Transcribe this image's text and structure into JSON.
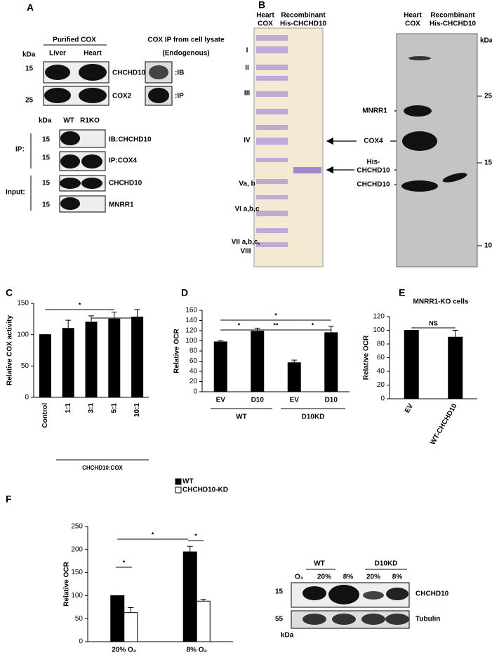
{
  "panel_labels": [
    "A",
    "B",
    "C",
    "D",
    "E",
    "F"
  ],
  "panel_a": {
    "purified_header": "Purified COX",
    "ip_header": "COX IP from cell lysate",
    "ip_sub": "(Endogenous)",
    "kda": "kDa",
    "lanes": [
      "Liver",
      "Heart"
    ],
    "markers": [
      "15",
      "25"
    ],
    "rows": [
      "CHCHD10",
      "COX2"
    ],
    "ip_rows": [
      ":IB",
      ":IP"
    ],
    "kda2": "kDa",
    "lanes2": [
      "WT",
      "R1KO"
    ],
    "markers2": [
      "15",
      "15",
      "15",
      "15"
    ],
    "rows2": [
      "IB:CHCHD10",
      "IP:COX4",
      "CHCHD10",
      "MNRR1"
    ],
    "groups2": [
      "IP:",
      "Input:"
    ]
  },
  "panel_b": {
    "gel_headers": [
      [
        "Heart",
        "COX"
      ],
      [
        "Recombinant",
        "His-CHCHD10"
      ]
    ],
    "subunits": [
      "I",
      "II",
      "III",
      "IV",
      "Va, b",
      "VI a,b,c",
      "VII a,b,c,",
      "VIII"
    ],
    "arrow_labels": [
      "MNRR1",
      "COX4",
      "His-",
      "CHCHD10",
      "CHCHD10"
    ],
    "blot_headers": [
      [
        "Heart",
        "COX"
      ],
      [
        "Recombinant",
        "His-CHCHD10"
      ]
    ],
    "kda": "kDa",
    "markers": [
      "25",
      "15",
      "10"
    ]
  },
  "blot_f": {
    "groups": [
      "WT",
      "D10KD"
    ],
    "o2": "O₂",
    "lanes": [
      "20%",
      "8%",
      "20%",
      "8%"
    ],
    "markers": [
      "15",
      "55"
    ],
    "kda": "kDa",
    "rows": [
      "CHCHD10",
      "Tubulin"
    ]
  },
  "chart_data": [
    {
      "type": "bar",
      "ylabel": "Relative COX activity",
      "categories": [
        "Control",
        "1:1",
        "3:1",
        "5:1",
        "10:1"
      ],
      "values": [
        100,
        110,
        120,
        125,
        128
      ],
      "errors": [
        0,
        13,
        10,
        11,
        12
      ],
      "color": "#000000",
      "ylim": [
        0,
        150
      ],
      "yticks": [
        0,
        50,
        100,
        150
      ],
      "x_group_labels": [
        "CHCHD10:COX"
      ],
      "annotations": [
        "*"
      ]
    },
    {
      "type": "bar",
      "ylabel": "Relative OCR",
      "categories": [
        "EV",
        "D10",
        "EV",
        "D10"
      ],
      "values": [
        98,
        119,
        57,
        116
      ],
      "errors": [
        2,
        6,
        5,
        13
      ],
      "color": "#000000",
      "ylim": [
        0,
        160
      ],
      "yticks": [
        0,
        20,
        40,
        60,
        80,
        100,
        120,
        140,
        160
      ],
      "x_group_labels": [
        "WT",
        "D10KD"
      ],
      "annotations": [
        "*",
        "*",
        "**",
        "*"
      ]
    },
    {
      "type": "bar",
      "title": "MNRR1-KO cells",
      "ylabel": "Relative OCR",
      "categories": [
        "EV",
        "WT-CHCHD10"
      ],
      "values": [
        100,
        90
      ],
      "errors": [
        0,
        10
      ],
      "color": "#000000",
      "ylim": [
        0,
        120
      ],
      "yticks": [
        0,
        20,
        40,
        60,
        80,
        100,
        120
      ],
      "annotations": [
        "NS"
      ]
    },
    {
      "type": "bar",
      "ylabel": "Relative OCR",
      "categories": [
        "20% O₂",
        "8% O₂"
      ],
      "series": [
        {
          "name": "WT",
          "color": "#000000",
          "values": [
            100,
            195
          ],
          "errors": [
            0,
            12
          ]
        },
        {
          "name": "CHCHD10-KD",
          "color": "#ffffff",
          "values": [
            63,
            88
          ],
          "errors": [
            11,
            4
          ]
        }
      ],
      "ylim": [
        0,
        250
      ],
      "yticks": [
        0,
        50,
        100,
        150,
        200,
        250
      ],
      "annotations": [
        "*",
        "*",
        "*"
      ]
    }
  ]
}
